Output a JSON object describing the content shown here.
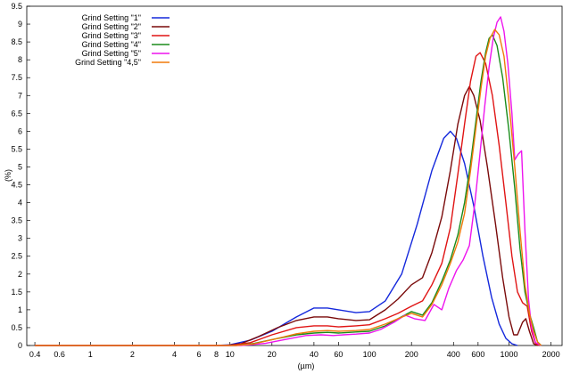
{
  "chart_data": {
    "type": "line",
    "xlabel": "(µm)",
    "ylabel": "(%)",
    "x_scale": "log",
    "xlim": [
      0.35,
      2400
    ],
    "ylim": [
      0,
      9.5
    ],
    "grid": false,
    "legend_position": "top-left",
    "x_ticks": [
      {
        "value": 0.4,
        "label": "0.4"
      },
      {
        "value": 0.6,
        "label": "0.6"
      },
      {
        "value": 1,
        "label": "1"
      },
      {
        "value": 2,
        "label": "2"
      },
      {
        "value": 4,
        "label": "4"
      },
      {
        "value": 6,
        "label": "6"
      },
      {
        "value": 8,
        "label": "8"
      },
      {
        "value": 10,
        "label": "10"
      },
      {
        "value": 20,
        "label": "20"
      },
      {
        "value": 40,
        "label": "40"
      },
      {
        "value": 60,
        "label": "60"
      },
      {
        "value": 100,
        "label": "100"
      },
      {
        "value": 200,
        "label": "200"
      },
      {
        "value": 400,
        "label": "400"
      },
      {
        "value": 600,
        "label": "600"
      },
      {
        "value": 1000,
        "label": "1000"
      },
      {
        "value": 2000,
        "label": "2000"
      }
    ],
    "y_ticks": [
      {
        "value": 0,
        "label": "0"
      },
      {
        "value": 0.5,
        "label": "0.5"
      },
      {
        "value": 1,
        "label": "1"
      },
      {
        "value": 1.5,
        "label": "1.5"
      },
      {
        "value": 2,
        "label": "2"
      },
      {
        "value": 2.5,
        "label": "2.5"
      },
      {
        "value": 3,
        "label": "3"
      },
      {
        "value": 3.5,
        "label": "3.5"
      },
      {
        "value": 4,
        "label": "4"
      },
      {
        "value": 4.5,
        "label": "4.5"
      },
      {
        "value": 5,
        "label": "5"
      },
      {
        "value": 5.5,
        "label": "5.5"
      },
      {
        "value": 6,
        "label": "6"
      },
      {
        "value": 6.5,
        "label": "6.5"
      },
      {
        "value": 7,
        "label": "7"
      },
      {
        "value": 7.5,
        "label": "7.5"
      },
      {
        "value": 8,
        "label": "8"
      },
      {
        "value": 8.5,
        "label": "8.5"
      },
      {
        "value": 9,
        "label": "9"
      },
      {
        "value": 9.5,
        "label": "9.5"
      }
    ],
    "series": [
      {
        "name": "Grind Setting  \"1\"",
        "color": "#1428dc",
        "points": [
          [
            0.4,
            0
          ],
          [
            8,
            0
          ],
          [
            10,
            0.02
          ],
          [
            14,
            0.15
          ],
          [
            20,
            0.4
          ],
          [
            30,
            0.8
          ],
          [
            40,
            1.05
          ],
          [
            50,
            1.05
          ],
          [
            60,
            1
          ],
          [
            80,
            0.92
          ],
          [
            100,
            0.95
          ],
          [
            130,
            1.25
          ],
          [
            170,
            2.0
          ],
          [
            220,
            3.4
          ],
          [
            280,
            4.9
          ],
          [
            340,
            5.8
          ],
          [
            380,
            6.0
          ],
          [
            420,
            5.8
          ],
          [
            480,
            5.1
          ],
          [
            560,
            3.9
          ],
          [
            650,
            2.5
          ],
          [
            750,
            1.35
          ],
          [
            850,
            0.6
          ],
          [
            950,
            0.2
          ],
          [
            1050,
            0.05
          ],
          [
            1150,
            0
          ]
        ]
      },
      {
        "name": "Grind Setting  \"2\"",
        "color": "#7a0a0a",
        "points": [
          [
            0.4,
            0
          ],
          [
            9,
            0
          ],
          [
            12,
            0.05
          ],
          [
            16,
            0.25
          ],
          [
            22,
            0.5
          ],
          [
            30,
            0.7
          ],
          [
            40,
            0.8
          ],
          [
            50,
            0.8
          ],
          [
            60,
            0.75
          ],
          [
            80,
            0.7
          ],
          [
            100,
            0.72
          ],
          [
            130,
            1.0
          ],
          [
            160,
            1.3
          ],
          [
            200,
            1.7
          ],
          [
            240,
            1.9
          ],
          [
            280,
            2.6
          ],
          [
            330,
            3.6
          ],
          [
            380,
            4.9
          ],
          [
            430,
            6.2
          ],
          [
            480,
            7.0
          ],
          [
            520,
            7.25
          ],
          [
            560,
            7.0
          ],
          [
            620,
            6.3
          ],
          [
            700,
            5.0
          ],
          [
            800,
            3.4
          ],
          [
            900,
            1.9
          ],
          [
            1000,
            0.8
          ],
          [
            1080,
            0.3
          ],
          [
            1150,
            0.3
          ],
          [
            1250,
            0.65
          ],
          [
            1320,
            0.75
          ],
          [
            1400,
            0.4
          ],
          [
            1500,
            0.05
          ],
          [
            1600,
            0
          ]
        ]
      },
      {
        "name": "Grind Setting  \"3\"",
        "color": "#e01414",
        "points": [
          [
            0.4,
            0
          ],
          [
            10,
            0
          ],
          [
            14,
            0.08
          ],
          [
            20,
            0.3
          ],
          [
            30,
            0.5
          ],
          [
            40,
            0.55
          ],
          [
            50,
            0.55
          ],
          [
            60,
            0.52
          ],
          [
            80,
            0.55
          ],
          [
            100,
            0.58
          ],
          [
            130,
            0.75
          ],
          [
            160,
            0.9
          ],
          [
            200,
            1.1
          ],
          [
            240,
            1.25
          ],
          [
            280,
            1.7
          ],
          [
            330,
            2.3
          ],
          [
            380,
            3.3
          ],
          [
            430,
            4.8
          ],
          [
            480,
            6.2
          ],
          [
            530,
            7.4
          ],
          [
            580,
            8.1
          ],
          [
            620,
            8.2
          ],
          [
            680,
            7.9
          ],
          [
            760,
            7.0
          ],
          [
            850,
            5.6
          ],
          [
            950,
            4.0
          ],
          [
            1050,
            2.5
          ],
          [
            1150,
            1.5
          ],
          [
            1250,
            1.2
          ],
          [
            1350,
            1.1
          ],
          [
            1450,
            0.4
          ],
          [
            1550,
            0.05
          ],
          [
            1650,
            0
          ]
        ]
      },
      {
        "name": "Grind Setting  \"4\"",
        "color": "#1a8c1a",
        "points": [
          [
            0.4,
            0
          ],
          [
            11,
            0
          ],
          [
            15,
            0.06
          ],
          [
            22,
            0.2
          ],
          [
            30,
            0.3
          ],
          [
            40,
            0.35
          ],
          [
            50,
            0.37
          ],
          [
            60,
            0.35
          ],
          [
            80,
            0.38
          ],
          [
            100,
            0.4
          ],
          [
            130,
            0.55
          ],
          [
            160,
            0.75
          ],
          [
            200,
            0.95
          ],
          [
            240,
            0.85
          ],
          [
            280,
            1.2
          ],
          [
            330,
            1.8
          ],
          [
            380,
            2.4
          ],
          [
            430,
            3.1
          ],
          [
            480,
            4.0
          ],
          [
            530,
            5.1
          ],
          [
            580,
            6.3
          ],
          [
            630,
            7.4
          ],
          [
            680,
            8.2
          ],
          [
            720,
            8.6
          ],
          [
            760,
            8.7
          ],
          [
            820,
            8.4
          ],
          [
            900,
            7.5
          ],
          [
            1000,
            6.0
          ],
          [
            1100,
            4.4
          ],
          [
            1200,
            2.7
          ],
          [
            1300,
            1.5
          ],
          [
            1400,
            0.9
          ],
          [
            1500,
            0.5
          ],
          [
            1600,
            0.1
          ],
          [
            1700,
            0
          ]
        ]
      },
      {
        "name": "Grind Setting  \"5\"",
        "color": "#ee14ee",
        "points": [
          [
            0.4,
            0
          ],
          [
            12,
            0
          ],
          [
            18,
            0.06
          ],
          [
            25,
            0.17
          ],
          [
            35,
            0.28
          ],
          [
            45,
            0.3
          ],
          [
            55,
            0.28
          ],
          [
            65,
            0.3
          ],
          [
            80,
            0.32
          ],
          [
            100,
            0.35
          ],
          [
            120,
            0.45
          ],
          [
            150,
            0.65
          ],
          [
            180,
            0.85
          ],
          [
            210,
            0.75
          ],
          [
            250,
            0.7
          ],
          [
            290,
            1.15
          ],
          [
            330,
            1.0
          ],
          [
            370,
            1.6
          ],
          [
            420,
            2.1
          ],
          [
            470,
            2.4
          ],
          [
            520,
            2.8
          ],
          [
            570,
            4.0
          ],
          [
            620,
            5.4
          ],
          [
            670,
            6.7
          ],
          [
            720,
            7.8
          ],
          [
            770,
            8.6
          ],
          [
            820,
            9.05
          ],
          [
            870,
            9.2
          ],
          [
            920,
            8.8
          ],
          [
            980,
            7.9
          ],
          [
            1050,
            6.5
          ],
          [
            1100,
            5.2
          ],
          [
            1160,
            5.35
          ],
          [
            1230,
            5.45
          ],
          [
            1300,
            3.2
          ],
          [
            1380,
            1.3
          ],
          [
            1450,
            0.5
          ],
          [
            1550,
            0.08
          ],
          [
            1700,
            0
          ]
        ]
      },
      {
        "name": "Grind Setting  \"4,5\"",
        "color": "#f07a0a",
        "points": [
          [
            0.4,
            0
          ],
          [
            11,
            0
          ],
          [
            15,
            0.05
          ],
          [
            22,
            0.2
          ],
          [
            30,
            0.33
          ],
          [
            40,
            0.4
          ],
          [
            50,
            0.42
          ],
          [
            60,
            0.4
          ],
          [
            80,
            0.42
          ],
          [
            100,
            0.45
          ],
          [
            130,
            0.6
          ],
          [
            160,
            0.75
          ],
          [
            200,
            0.9
          ],
          [
            240,
            0.8
          ],
          [
            280,
            1.15
          ],
          [
            330,
            1.7
          ],
          [
            380,
            2.3
          ],
          [
            430,
            2.9
          ],
          [
            480,
            3.7
          ],
          [
            530,
            4.9
          ],
          [
            580,
            6.1
          ],
          [
            630,
            7.2
          ],
          [
            680,
            8.1
          ],
          [
            730,
            8.6
          ],
          [
            790,
            8.85
          ],
          [
            850,
            8.7
          ],
          [
            920,
            8.1
          ],
          [
            1000,
            6.8
          ],
          [
            1100,
            5.0
          ],
          [
            1200,
            3.2
          ],
          [
            1300,
            1.7
          ],
          [
            1400,
            0.9
          ],
          [
            1500,
            0.4
          ],
          [
            1600,
            0.1
          ],
          [
            1700,
            0
          ]
        ]
      }
    ]
  }
}
